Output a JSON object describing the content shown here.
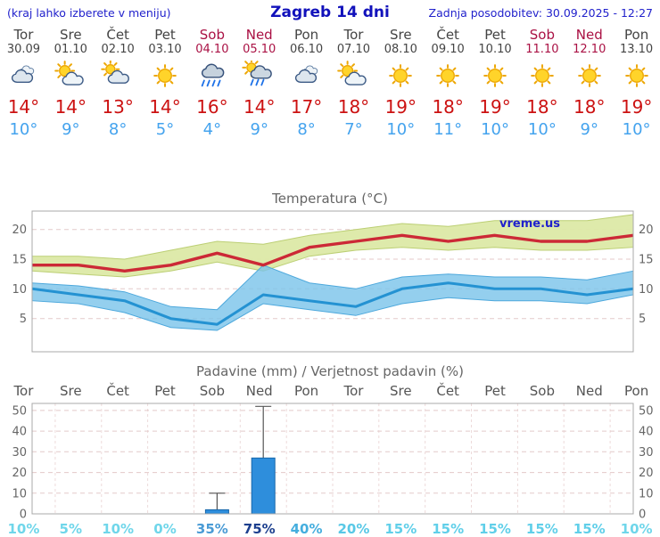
{
  "header": {
    "note": "(kraj lahko izberete v meniju)",
    "title": "Zagreb 14 dni",
    "updated": "Zadnja posodobitev: 30.09.2025 - 12:27"
  },
  "days": [
    {
      "name": "Tor",
      "date": "30.09",
      "icon": "cloudy",
      "max": "14°",
      "min": "10°",
      "weekend": false
    },
    {
      "name": "Sre",
      "date": "01.10",
      "icon": "partly-cloudy",
      "max": "14°",
      "min": "9°",
      "weekend": false
    },
    {
      "name": "Čet",
      "date": "02.10",
      "icon": "mostly-cloudy",
      "max": "13°",
      "min": "8°",
      "weekend": false
    },
    {
      "name": "Pet",
      "date": "03.10",
      "icon": "sunny",
      "max": "14°",
      "min": "5°",
      "weekend": false
    },
    {
      "name": "Sob",
      "date": "04.10",
      "icon": "rain",
      "max": "16°",
      "min": "4°",
      "weekend": true
    },
    {
      "name": "Ned",
      "date": "05.10",
      "icon": "rain-sun",
      "max": "14°",
      "min": "9°",
      "weekend": true
    },
    {
      "name": "Pon",
      "date": "06.10",
      "icon": "cloudy",
      "max": "17°",
      "min": "8°",
      "weekend": false
    },
    {
      "name": "Tor",
      "date": "07.10",
      "icon": "partly-cloudy",
      "max": "18°",
      "min": "7°",
      "weekend": false
    },
    {
      "name": "Sre",
      "date": "08.10",
      "icon": "sunny",
      "max": "19°",
      "min": "10°",
      "weekend": false
    },
    {
      "name": "Čet",
      "date": "09.10",
      "icon": "sunny",
      "max": "18°",
      "min": "11°",
      "weekend": false
    },
    {
      "name": "Pet",
      "date": "10.10",
      "icon": "sunny",
      "max": "19°",
      "min": "10°",
      "weekend": false
    },
    {
      "name": "Sob",
      "date": "11.10",
      "icon": "sunny",
      "max": "18°",
      "min": "10°",
      "weekend": true
    },
    {
      "name": "Ned",
      "date": "12.10",
      "icon": "sunny",
      "max": "18°",
      "min": "9°",
      "weekend": true
    },
    {
      "name": "Pon",
      "date": "13.10",
      "icon": "sunny",
      "max": "19°",
      "min": "10°",
      "weekend": false
    }
  ],
  "chart_data": [
    {
      "type": "line",
      "title": "Temperatura (°C)",
      "x_labels": [
        "Tor",
        "Sre",
        "Čet",
        "Pet",
        "Sob",
        "Ned",
        "Pon",
        "Tor",
        "Sre",
        "Čet",
        "Pet",
        "Sob",
        "Ned",
        "Pon"
      ],
      "ylim": [
        0,
        22.5
      ],
      "yticks": [
        5,
        10,
        15,
        20
      ],
      "grid": true,
      "watermark": "vreme.us",
      "series": [
        {
          "name": "max-temp",
          "color": "#cc2936",
          "values": [
            14,
            14,
            13,
            14,
            16,
            14,
            17,
            18,
            19,
            18,
            19,
            18,
            18,
            19
          ]
        },
        {
          "name": "min-temp",
          "color": "#2492d2",
          "values": [
            10,
            9,
            8,
            5,
            4,
            9,
            8,
            7,
            10,
            11,
            10,
            10,
            9,
            10
          ]
        },
        {
          "name": "max-range-upper",
          "color": "#dce9a6",
          "values": [
            15.5,
            15.5,
            15,
            16.5,
            18,
            17.5,
            19,
            20,
            21,
            20.5,
            21.5,
            21.5,
            21.5,
            22.5
          ]
        },
        {
          "name": "max-range-lower",
          "color": "#dce9a6",
          "values": [
            13,
            12.5,
            12,
            13,
            14.5,
            13,
            15.5,
            16.5,
            17,
            16.5,
            17,
            16.5,
            16.5,
            17
          ]
        },
        {
          "name": "min-range-upper",
          "color": "#79c3ea",
          "values": [
            11,
            10.5,
            9.5,
            7,
            6.5,
            14,
            11,
            10,
            12,
            12.5,
            12,
            12,
            11.5,
            13
          ]
        },
        {
          "name": "min-range-lower",
          "color": "#79c3ea",
          "values": [
            8,
            7.5,
            6,
            3.5,
            3,
            7.5,
            6.5,
            5.5,
            7.5,
            8.5,
            8,
            8,
            7.5,
            9
          ]
        }
      ]
    },
    {
      "type": "bar",
      "title": "Padavine (mm) / Verjetnost padavin (%)",
      "categories": [
        "Tor",
        "Sre",
        "Čet",
        "Pet",
        "Sob",
        "Ned",
        "Pon",
        "Tor",
        "Sre",
        "Čet",
        "Pet",
        "Sob",
        "Ned",
        "Pon"
      ],
      "values": [
        0,
        0,
        0,
        0,
        2,
        27,
        0,
        0,
        0,
        0,
        0,
        0,
        0,
        0
      ],
      "whisker_max": [
        0,
        0,
        0,
        0,
        10,
        52,
        0,
        0,
        0,
        0,
        0,
        0,
        0,
        0
      ],
      "ylim": [
        0,
        53.4
      ],
      "yticks": [
        0,
        10,
        20,
        30,
        40,
        50
      ],
      "bar_color": "#2e8edc",
      "probabilities": [
        {
          "label": "10%",
          "color": "#6fd6ea"
        },
        {
          "label": "5%",
          "color": "#6fd6ea"
        },
        {
          "label": "10%",
          "color": "#6fd6ea"
        },
        {
          "label": "0%",
          "color": "#6fd6ea"
        },
        {
          "label": "35%",
          "color": "#4a9bd5"
        },
        {
          "label": "75%",
          "color": "#1c3f8e"
        },
        {
          "label": "40%",
          "color": "#45aede"
        },
        {
          "label": "20%",
          "color": "#58c8e6"
        },
        {
          "label": "15%",
          "color": "#60cfe9"
        },
        {
          "label": "15%",
          "color": "#60cfe9"
        },
        {
          "label": "15%",
          "color": "#60cfe9"
        },
        {
          "label": "15%",
          "color": "#60cfe9"
        },
        {
          "label": "15%",
          "color": "#60cfe9"
        },
        {
          "label": "10%",
          "color": "#6fd6ea"
        }
      ]
    }
  ]
}
